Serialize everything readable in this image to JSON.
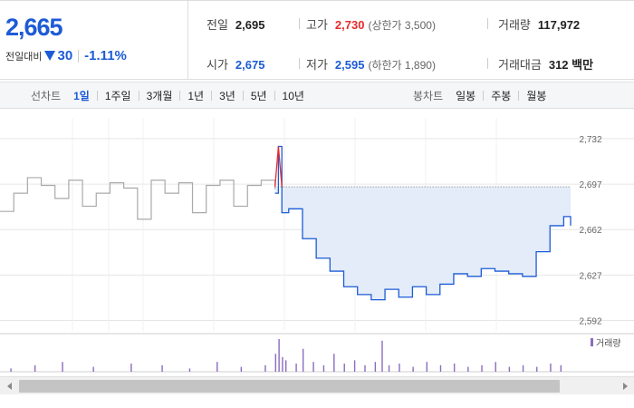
{
  "summary": {
    "current_price": "2,665",
    "change_label": "전일대비",
    "change_value": "30",
    "change_pct": "-1.11%",
    "prev_close_label": "전일",
    "prev_close": "2,695",
    "open_label": "시가",
    "open": "2,675",
    "high_label": "고가",
    "high": "2,730",
    "upper_limit_note": "(상한가 3,500)",
    "low_label": "저가",
    "low": "2,595",
    "lower_limit_note": "(하한가 1,890)",
    "volume_label": "거래량",
    "volume": "117,972",
    "trade_value_label": "거래대금",
    "trade_value": "312 백만"
  },
  "line_tabs": {
    "title": "선차트",
    "items": [
      "1일",
      "1주일",
      "3개월",
      "1년",
      "3년",
      "5년",
      "10년"
    ],
    "active": 0
  },
  "candle_tabs": {
    "title": "봉차트",
    "items": [
      "일봉",
      "주봉",
      "월봉"
    ]
  },
  "colors": {
    "down": "#1d5bd6",
    "up": "#e52b2b",
    "prev_day_line": "#aaaaaa",
    "fill": "#e3ecf8",
    "volume": "#8c6bbf"
  },
  "chart_data": {
    "type": "line",
    "y_ticks": [
      "2,732",
      "2,697",
      "2,662",
      "2,627",
      "2,592"
    ],
    "y_tick_values": [
      2732,
      2697,
      2662,
      2627,
      2592
    ],
    "ylim": [
      2584,
      2748
    ],
    "reference_price": 2695,
    "volume_legend": "거래량",
    "grid": true,
    "series": [
      {
        "x": [
          0,
          4,
          8,
          12,
          16,
          20,
          24,
          28,
          32,
          36,
          40,
          44,
          48,
          52,
          56,
          60,
          64,
          68,
          72,
          76,
          80
        ],
        "values": [
          2676,
          2690,
          2702,
          2696,
          2686,
          2700,
          2680,
          2690,
          2698,
          2694,
          2670,
          2700,
          2690,
          2698,
          2675,
          2696,
          2700,
          2680,
          2696,
          2700,
          2693
        ]
      },
      {
        "x": [
          80,
          81,
          82,
          84,
          88,
          92,
          96,
          100,
          104,
          108,
          112,
          116,
          120,
          124,
          128,
          132,
          136,
          140,
          144,
          148,
          152,
          156,
          160,
          164,
          166
        ],
        "values": [
          2690,
          2726,
          2675,
          2678,
          2655,
          2640,
          2630,
          2618,
          2612,
          2608,
          2616,
          2610,
          2618,
          2612,
          2620,
          2628,
          2626,
          2632,
          2630,
          2628,
          2626,
          2645,
          2665,
          2672,
          2665
        ]
      }
    ],
    "volume": [
      {
        "x": 3,
        "v": 0.1
      },
      {
        "x": 10,
        "v": 0.2
      },
      {
        "x": 18,
        "v": 0.3
      },
      {
        "x": 27,
        "v": 0.15
      },
      {
        "x": 38,
        "v": 0.25
      },
      {
        "x": 47,
        "v": 0.2
      },
      {
        "x": 55,
        "v": 0.1
      },
      {
        "x": 63,
        "v": 0.3
      },
      {
        "x": 70,
        "v": 0.15
      },
      {
        "x": 77,
        "v": 0.2
      },
      {
        "x": 80,
        "v": 0.55
      },
      {
        "x": 81,
        "v": 1.0
      },
      {
        "x": 82,
        "v": 0.45
      },
      {
        "x": 83,
        "v": 0.35
      },
      {
        "x": 86,
        "v": 0.25
      },
      {
        "x": 88,
        "v": 0.7
      },
      {
        "x": 91,
        "v": 0.3
      },
      {
        "x": 94,
        "v": 0.2
      },
      {
        "x": 97,
        "v": 0.55
      },
      {
        "x": 100,
        "v": 0.25
      },
      {
        "x": 103,
        "v": 0.35
      },
      {
        "x": 106,
        "v": 0.2
      },
      {
        "x": 109,
        "v": 0.3
      },
      {
        "x": 111,
        "v": 0.95
      },
      {
        "x": 113,
        "v": 0.2
      },
      {
        "x": 116,
        "v": 0.25
      },
      {
        "x": 120,
        "v": 0.15
      },
      {
        "x": 124,
        "v": 0.3
      },
      {
        "x": 128,
        "v": 0.2
      },
      {
        "x": 132,
        "v": 0.25
      },
      {
        "x": 136,
        "v": 0.15
      },
      {
        "x": 140,
        "v": 0.2
      },
      {
        "x": 144,
        "v": 0.3
      },
      {
        "x": 148,
        "v": 0.15
      },
      {
        "x": 152,
        "v": 0.2
      },
      {
        "x": 156,
        "v": 0.15
      },
      {
        "x": 160,
        "v": 0.25
      },
      {
        "x": 163,
        "v": 0.2
      }
    ]
  }
}
